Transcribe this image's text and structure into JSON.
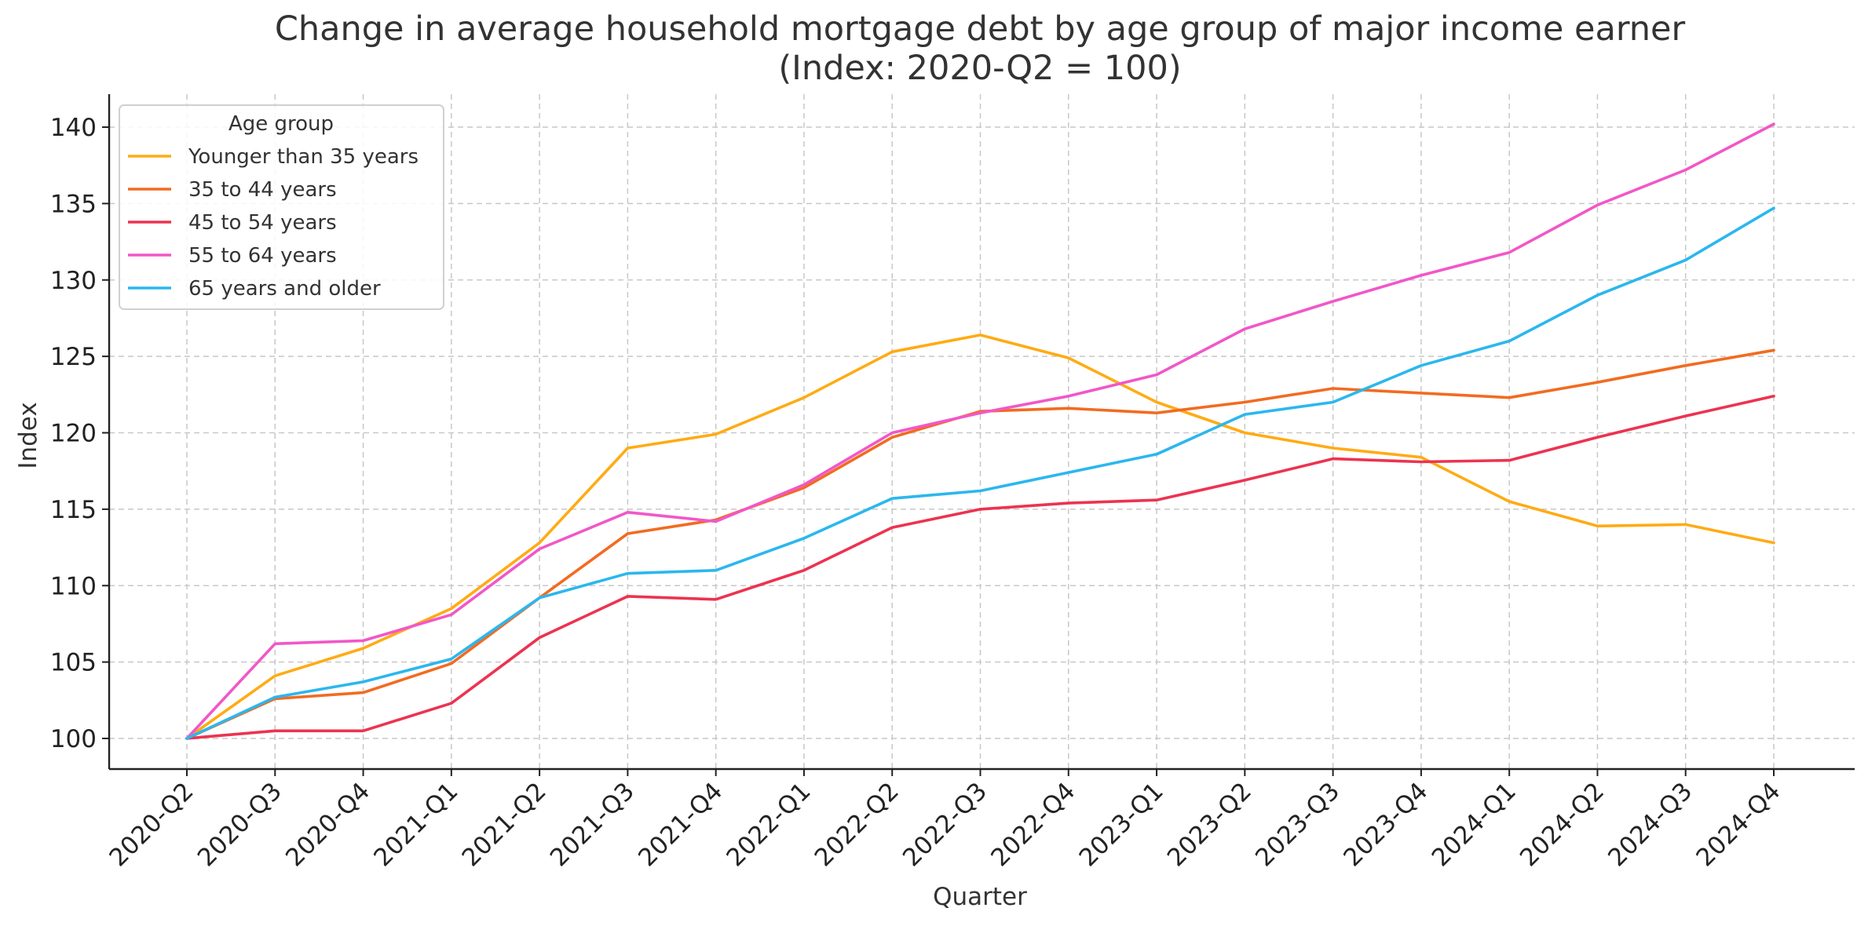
{
  "chart_data": {
    "type": "line",
    "title": "Change in average household mortgage debt by age group of major income earner",
    "subtitle": "(Index: 2020-Q2 = 100)",
    "xlabel": "Quarter",
    "ylabel": "Index",
    "ylim": [
      98,
      142
    ],
    "yticks": [
      100,
      105,
      110,
      115,
      120,
      125,
      130,
      135,
      140
    ],
    "grid": true,
    "legend_title": "Age group",
    "legend_placement": "top-left",
    "categories": [
      "2020-Q2",
      "2020-Q3",
      "2020-Q4",
      "2021-Q1",
      "2021-Q2",
      "2021-Q3",
      "2021-Q4",
      "2022-Q1",
      "2022-Q2",
      "2022-Q3",
      "2022-Q4",
      "2023-Q1",
      "2023-Q2",
      "2023-Q3",
      "2023-Q4",
      "2024-Q1",
      "2024-Q2",
      "2024-Q3",
      "2024-Q4"
    ],
    "series": [
      {
        "name": "Younger than 35 years",
        "color": "#ffab14",
        "values": [
          100,
          104.1,
          105.9,
          108.5,
          112.8,
          119.0,
          119.9,
          122.3,
          125.3,
          126.4,
          124.9,
          122.0,
          120.0,
          119.0,
          118.4,
          115.5,
          113.9,
          114.0,
          112.8
        ]
      },
      {
        "name": "35 to 44 years",
        "color": "#f26b21",
        "values": [
          100,
          102.6,
          103.0,
          104.9,
          109.2,
          113.4,
          114.3,
          116.4,
          119.7,
          121.4,
          121.6,
          121.3,
          122.0,
          122.9,
          122.6,
          122.3,
          123.3,
          124.4,
          125.4
        ]
      },
      {
        "name": "45 to 54 years",
        "color": "#ec3350",
        "values": [
          100,
          100.5,
          100.5,
          102.3,
          106.6,
          109.3,
          109.1,
          111.0,
          113.8,
          115.0,
          115.4,
          115.6,
          116.9,
          118.3,
          118.1,
          118.2,
          119.7,
          121.1,
          122.4
        ]
      },
      {
        "name": "55 to 64 years",
        "color": "#f157c8",
        "values": [
          100,
          106.2,
          106.4,
          108.1,
          112.4,
          114.8,
          114.2,
          116.6,
          120.0,
          121.3,
          122.4,
          123.8,
          126.8,
          128.6,
          130.3,
          131.8,
          134.9,
          137.2,
          140.2
        ]
      },
      {
        "name": "65 years and older",
        "color": "#2bb7ee",
        "values": [
          100,
          102.7,
          103.7,
          105.2,
          109.2,
          110.8,
          111.0,
          113.1,
          115.7,
          116.2,
          117.4,
          118.6,
          121.2,
          122.0,
          124.4,
          126.0,
          129.0,
          131.3,
          134.7
        ]
      }
    ]
  }
}
